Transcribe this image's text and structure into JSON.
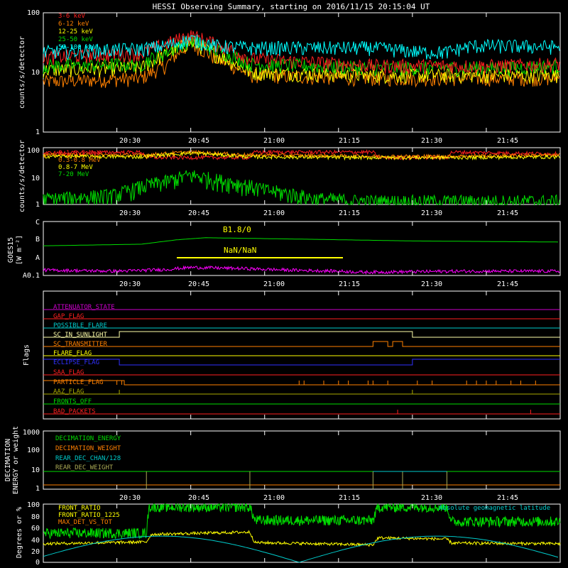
{
  "title": "HESSI Observing Summary, starting on 2016/11/15 20:15:04 UT",
  "time_ticks": [
    "20:30",
    "20:45",
    "21:00",
    "21:15",
    "21:30",
    "21:45"
  ],
  "panels": {
    "lo_energy": {
      "ylabel": "counts/s/detector",
      "yticks": [
        "1",
        "10",
        "100"
      ],
      "legend": [
        {
          "name": "3-6 keV",
          "color": "#ff2020"
        },
        {
          "name": "6-12 keV",
          "color": "#ff8000"
        },
        {
          "name": "12-25 keV",
          "color": "#ffff00"
        },
        {
          "name": "25-50 keV",
          "color": "#00dd00"
        },
        {
          "name": "50-100 keV",
          "color": "#00ffff"
        }
      ]
    },
    "hi_energy": {
      "ylabel": "counts/s/detector",
      "yticks": [
        "1",
        "10",
        "100"
      ],
      "legend": [
        {
          "name": "0.1-0.3 MeV",
          "color": "#ff2020"
        },
        {
          "name": "0.3-0.8 MeV",
          "color": "#ff8000"
        },
        {
          "name": "0.8-7 MeV",
          "color": "#ffff00"
        },
        {
          "name": "7-20 MeV",
          "color": "#00dd00"
        }
      ]
    },
    "goes": {
      "ylabel": "GOES15",
      "unit": "[W m⁻²]",
      "yticks": [
        "A0.1",
        "A",
        "B",
        "C"
      ],
      "annotations": [
        "B1.8/0",
        "NaN/NaN"
      ]
    },
    "flags": {
      "ylabel": "Flags",
      "items": [
        {
          "name": "ATTENUATOR_STATE",
          "color": "#cc00cc"
        },
        {
          "name": "GAP_FLAG",
          "color": "#ff2020"
        },
        {
          "name": "POSSIBLE_FLARE",
          "color": "#00cccc"
        },
        {
          "name": "SC_IN_SUNLIGHT",
          "color": "#ffffaa"
        },
        {
          "name": "SC_TRANSMITTER",
          "color": "#ff8000"
        },
        {
          "name": "FLARE_FLAG",
          "color": "#ffff00"
        },
        {
          "name": "ECLIPSE_FLAG",
          "color": "#3030ff"
        },
        {
          "name": "SAA_FLAG",
          "color": "#ff2020"
        },
        {
          "name": "PARTICLE_FLAG",
          "color": "#ff8000"
        },
        {
          "name": "AAZ_FLAG",
          "color": "#aaaa00"
        },
        {
          "name": "FRONTS_OFF",
          "color": "#00dd00"
        },
        {
          "name": "BAD_PACKETS",
          "color": "#ff2020"
        }
      ]
    },
    "decimation": {
      "ylabel": "DECIMATION",
      "ylabel2": "ENERGY or weight",
      "yticks": [
        "1",
        "10",
        "100",
        "1000"
      ],
      "legend": [
        {
          "name": "DECIMATION_ENERGY",
          "color": "#00dd00"
        },
        {
          "name": "DECIMATION_WEIGHT",
          "color": "#ff8000"
        },
        {
          "name": "REAR_DEC_CHAN/128",
          "color": "#00cccc"
        },
        {
          "name": "REAR_DEC_WEIGHT",
          "color": "#aaaa55"
        }
      ]
    },
    "ratio": {
      "ylabel": "Degrees or %",
      "yticks": [
        "0",
        "20",
        "40",
        "60",
        "80",
        "100"
      ],
      "legend": [
        {
          "name": "FRONT_RATIO",
          "color": "#00dd00"
        },
        {
          "name": "FRONT_RATIO_1225",
          "color": "#ffff00"
        },
        {
          "name": "MAX_DET_VS_TOT",
          "color": "#ff8000"
        }
      ],
      "annotation": {
        "text": "Absolute geomagnetic latitude",
        "color": "#00cccc"
      }
    }
  },
  "chart_data": [
    {
      "type": "line",
      "ylog": true,
      "ylim": [
        1,
        100
      ],
      "xlim": [
        "20:15:04",
        "22:00"
      ],
      "series": [
        {
          "name": "3-6 keV",
          "x": [
            "20:15",
            "20:35",
            "20:40",
            "20:45",
            "20:50",
            "20:57",
            "21:22",
            "21:32",
            "21:37",
            "21:42",
            "21:47",
            "22:00"
          ],
          "y": [
            18,
            21,
            30,
            42,
            30,
            17,
            13,
            13,
            13,
            13,
            13,
            14
          ]
        },
        {
          "name": "6-12 keV",
          "x": [
            "20:15",
            "20:35",
            "20:40",
            "20:45",
            "20:50",
            "20:57",
            "21:22",
            "21:32",
            "21:37",
            "21:42",
            "21:47",
            "22:00"
          ],
          "y": [
            7,
            8,
            13,
            30,
            17,
            9,
            8,
            8,
            8,
            8,
            8,
            8
          ]
        },
        {
          "name": "12-25 keV",
          "x": [
            "20:15",
            "20:35",
            "20:40",
            "20:45",
            "20:50",
            "20:57",
            "21:22",
            "21:32",
            "21:37",
            "21:42",
            "21:47",
            "22:00"
          ],
          "y": [
            11,
            12,
            20,
            32,
            20,
            10,
            9,
            9,
            9,
            9,
            9,
            9
          ]
        },
        {
          "name": "25-50 keV",
          "x": [
            "20:15",
            "20:35",
            "20:40",
            "20:45",
            "20:50",
            "20:57",
            "21:22",
            "21:32",
            "21:37",
            "21:42",
            "21:47",
            "22:00"
          ],
          "y": [
            13,
            14,
            22,
            35,
            24,
            14,
            12,
            12,
            12,
            12,
            12,
            13
          ]
        },
        {
          "name": "50-100 keV",
          "x": [
            "20:15",
            "20:35",
            "20:40",
            "20:45",
            "20:50",
            "20:57",
            "21:22",
            "21:32",
            "21:37",
            "21:42",
            "21:47",
            "22:00"
          ],
          "y": [
            22,
            25,
            28,
            36,
            28,
            26,
            26,
            22,
            22,
            28,
            28,
            27
          ]
        }
      ]
    },
    {
      "type": "line",
      "ylog": true,
      "ylim": [
        1,
        100
      ],
      "xlim": [
        "20:15:04",
        "22:00"
      ],
      "series": [
        {
          "name": "0.1-0.3 MeV",
          "x": [
            "20:15",
            "20:35",
            "20:36",
            "20:57",
            "20:58",
            "21:22",
            "21:23",
            "21:37",
            "21:38",
            "22:00"
          ],
          "y": [
            65,
            70,
            45,
            45,
            70,
            70,
            45,
            45,
            70,
            60
          ]
        },
        {
          "name": "0.3-0.8 MeV",
          "x": [
            "20:15",
            "20:35",
            "20:45",
            "20:57",
            "21:22",
            "21:37",
            "22:00"
          ],
          "y": [
            55,
            55,
            70,
            55,
            50,
            50,
            55
          ]
        },
        {
          "name": "0.8-7 MeV",
          "x": [
            "20:15",
            "20:35",
            "20:45",
            "20:57",
            "21:22",
            "21:37",
            "22:00"
          ],
          "y": [
            50,
            48,
            65,
            48,
            45,
            45,
            48
          ]
        },
        {
          "name": "7-20 MeV",
          "x": [
            "20:15",
            "20:30",
            "20:40",
            "20:45",
            "20:50",
            "21:00",
            "21:10",
            "21:20",
            "22:00"
          ],
          "y": [
            1.4,
            2,
            6,
            10,
            7,
            3,
            1.5,
            1.2,
            1.2
          ]
        }
      ]
    },
    {
      "type": "line",
      "ylim": [
        "A0.1",
        "C"
      ],
      "series": [
        {
          "name": "GOES long",
          "x": [
            "20:15",
            "20:35",
            "20:42",
            "20:48",
            "21:10",
            "21:30",
            "22:00"
          ],
          "y": [
            0.55,
            0.58,
            0.66,
            0.7,
            0.67,
            0.64,
            0.62
          ]
        },
        {
          "name": "GOES short",
          "x": [
            "20:15",
            "20:30",
            "20:40",
            "20:45",
            "20:55",
            "21:05",
            "21:15",
            "21:20",
            "21:30",
            "21:40",
            "22:00"
          ],
          "y": [
            0.1,
            0.08,
            0.11,
            0.15,
            0.13,
            0.1,
            0.08,
            0.06,
            0.07,
            0.08,
            0.08
          ]
        }
      ]
    },
    {
      "type": "line",
      "ylim": [
        0,
        100
      ],
      "series": [
        {
          "name": "FRONT_RATIO",
          "x": [
            "20:15",
            "20:36",
            "20:36:30",
            "20:57",
            "20:58",
            "21:22",
            "21:23",
            "21:37",
            "21:38",
            "22:00"
          ],
          "y": [
            50,
            50,
            95,
            95,
            72,
            72,
            95,
            95,
            70,
            70
          ]
        },
        {
          "name": "FRONT_RATIO_1225",
          "x": [
            "20:15",
            "20:36",
            "20:37",
            "20:57",
            "20:58",
            "21:22",
            "21:23",
            "21:37",
            "21:38",
            "22:00"
          ],
          "y": [
            32,
            35,
            48,
            52,
            34,
            30,
            42,
            40,
            33,
            32
          ]
        },
        {
          "name": "Absolute geomagnetic latitude",
          "x": [
            "20:15",
            "20:26",
            "20:45",
            "20:50",
            "21:00",
            "21:07",
            "21:25",
            "21:40",
            "21:50",
            "22:00"
          ],
          "y": [
            5,
            15,
            42,
            43,
            40,
            3,
            40,
            45,
            30,
            12
          ]
        }
      ]
    }
  ]
}
